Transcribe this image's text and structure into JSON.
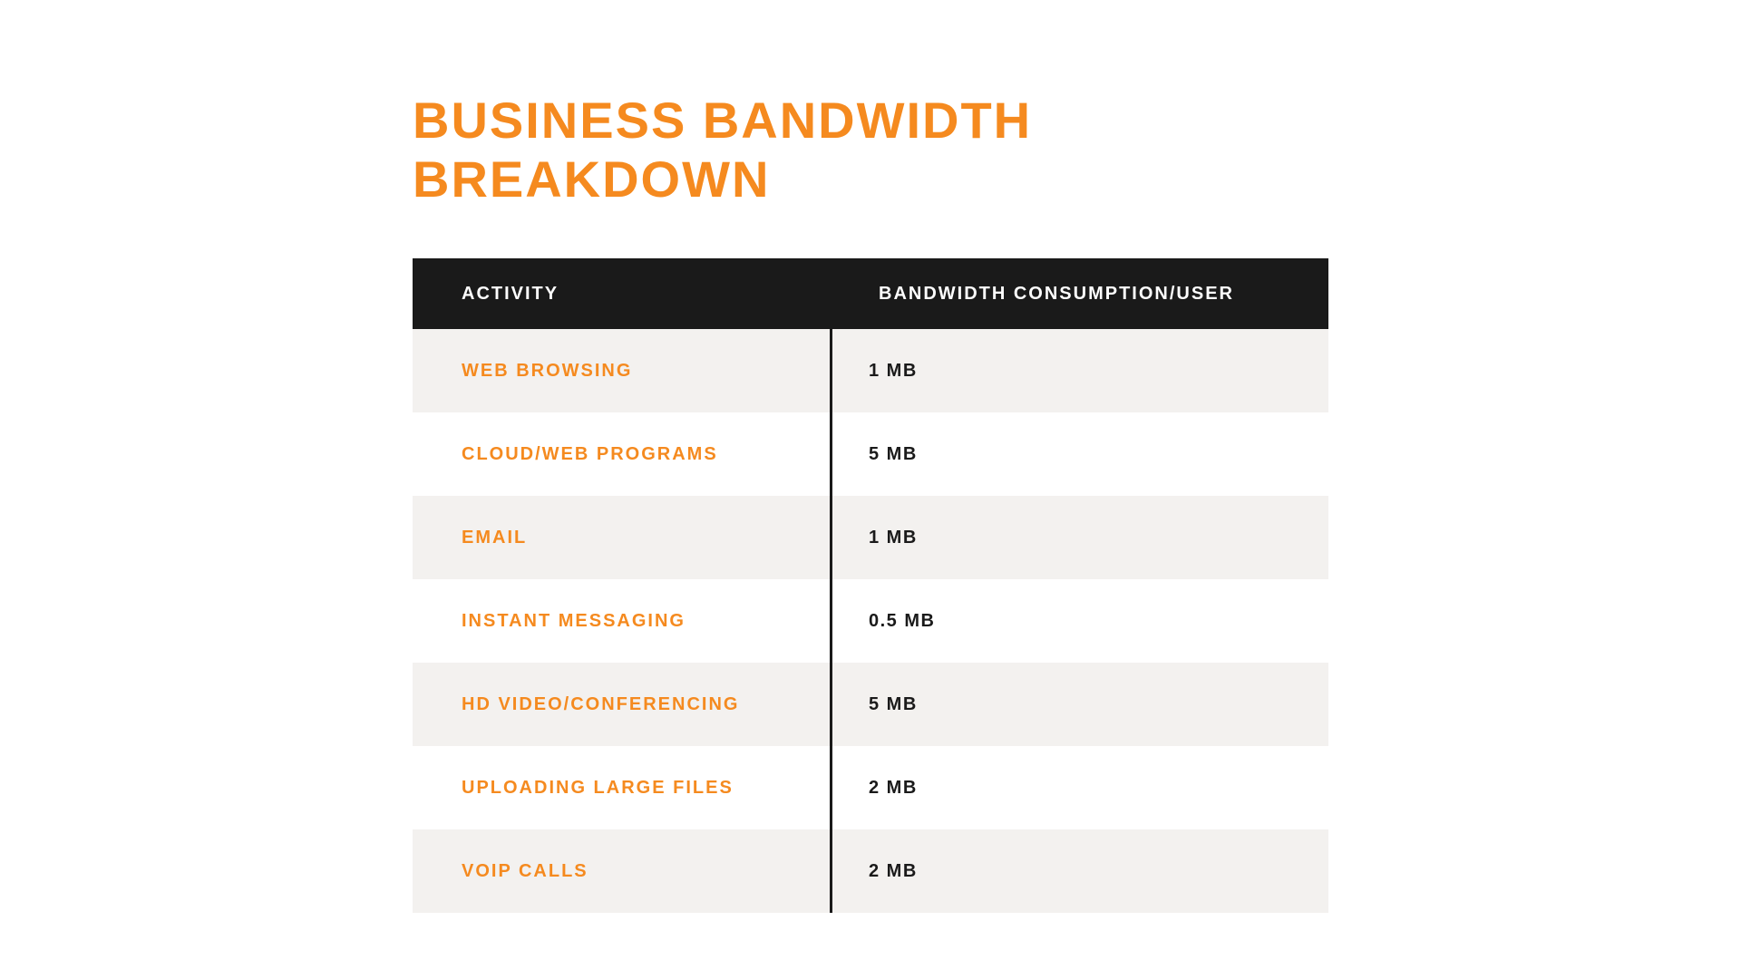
{
  "title": "BUSINESS BANDWIDTH BREAKDOWN",
  "colors": {
    "title_color": "#f58a1f",
    "header_bg": "#1a1a1a",
    "header_text": "#ffffff",
    "activity_text": "#f58a1f",
    "bandwidth_text": "#1a1a1a",
    "row_odd_bg": "#f3f1ef",
    "row_even_bg": "#ffffff",
    "divider_color": "#1a1a1a"
  },
  "table": {
    "columns": [
      "ACTIVITY",
      "BANDWIDTH  CONSUMPTION/USER"
    ],
    "rows": [
      {
        "activity": "WEB BROWSING",
        "bandwidth": "1 MB"
      },
      {
        "activity": "CLOUD/WEB PROGRAMS",
        "bandwidth": "5 MB"
      },
      {
        "activity": "EMAIL",
        "bandwidth": "1 MB"
      },
      {
        "activity": "INSTANT MESSAGING",
        "bandwidth": "0.5 MB"
      },
      {
        "activity": "HD VIDEO/CONFERENCING",
        "bandwidth": "5 MB"
      },
      {
        "activity": "UPLOADING LARGE FILES",
        "bandwidth": "2 MB"
      },
      {
        "activity": "VOIP CALLS",
        "bandwidth": "2 MB"
      }
    ]
  }
}
